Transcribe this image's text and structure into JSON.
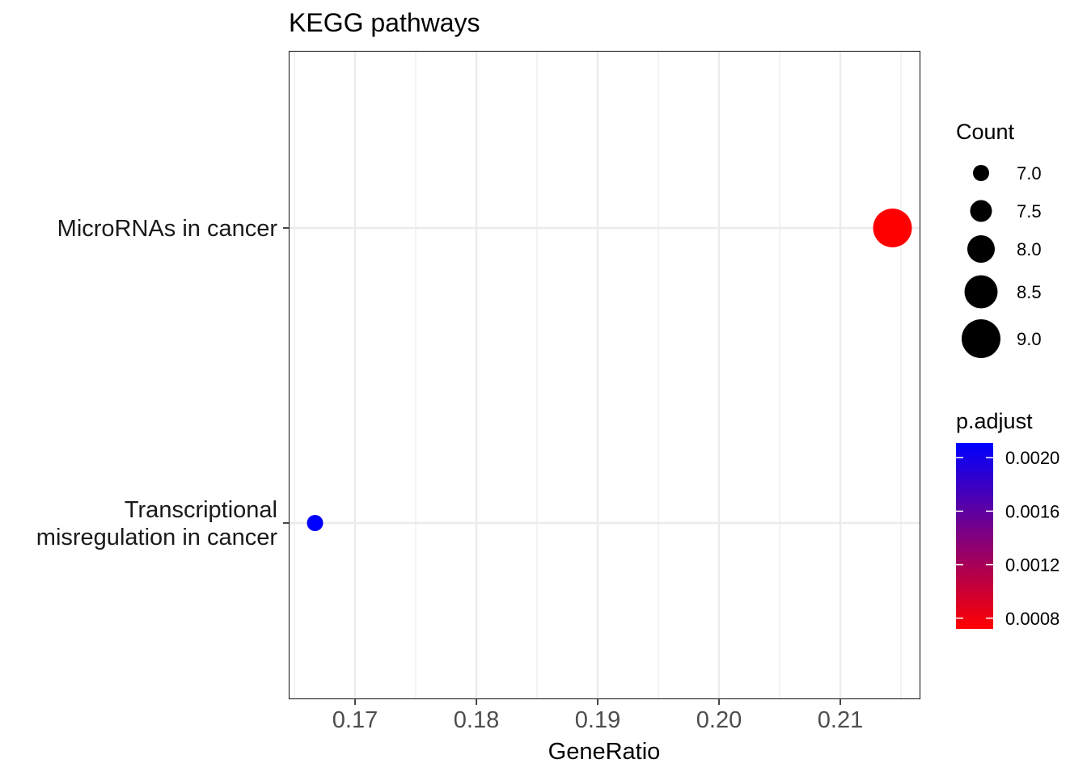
{
  "chart_data": {
    "type": "scatter",
    "title": "KEGG pathways",
    "xlabel": "GeneRatio",
    "ylabel": "",
    "xlim": [
      0.1646,
      0.2166
    ],
    "x_ticks": [
      0.17,
      0.18,
      0.19,
      0.2,
      0.21
    ],
    "x_tick_labels": [
      "0.17",
      "0.18",
      "0.19",
      "0.20",
      "0.21"
    ],
    "grid": true,
    "categories": [
      [
        "MicroRNAs in cancer"
      ],
      [
        "Transcriptional",
        "misregulation in cancer"
      ]
    ],
    "points": [
      {
        "category_index": 0,
        "x": 0.2143,
        "count": 9,
        "p_adjust": 0.00072
      },
      {
        "category_index": 1,
        "x": 0.1667,
        "count": 7,
        "p_adjust": 0.00211
      }
    ],
    "size_legend": {
      "title": "Count",
      "breaks": [
        7.0,
        7.5,
        8.0,
        8.5,
        9.0
      ],
      "labels": [
        "7.0",
        "7.5",
        "8.0",
        "8.5",
        "9.0"
      ],
      "range": [
        7,
        9
      ]
    },
    "color_legend": {
      "title": "p.adjust",
      "breaks": [
        0.002,
        0.0016,
        0.0012,
        0.0008
      ],
      "labels": [
        "0.0020",
        "0.0016",
        "0.0012",
        "0.0008"
      ],
      "range": [
        0.00072,
        0.00211
      ],
      "low_color": "#FF0000",
      "high_color": "#0000FF"
    }
  }
}
